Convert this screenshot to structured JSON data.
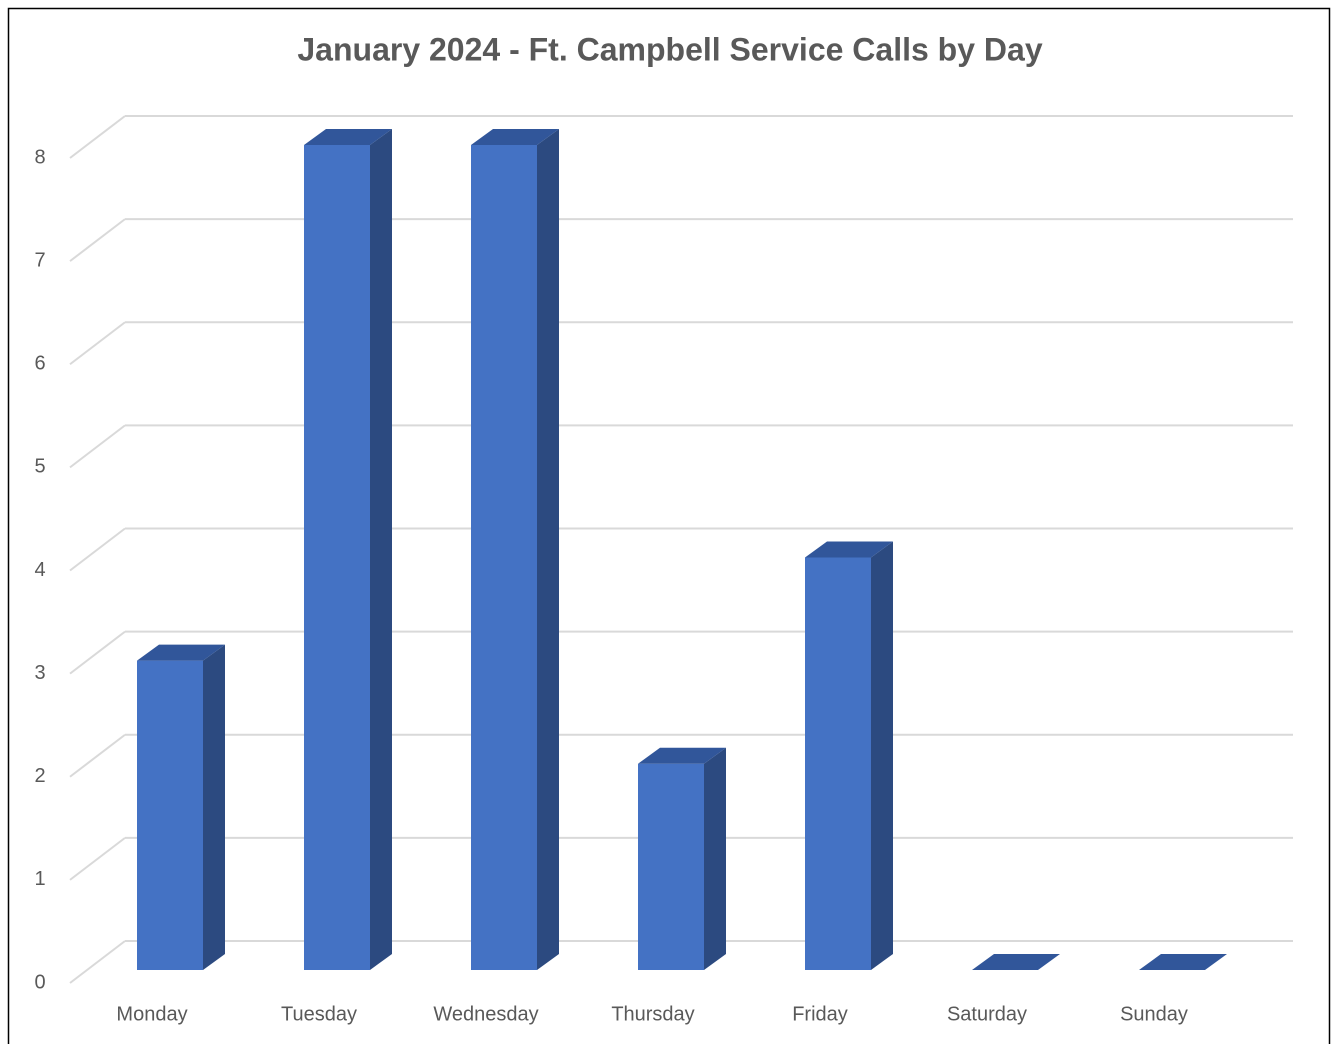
{
  "chart_data": {
    "type": "bar3d",
    "title": "January 2024 - Ft. Campbell Service Calls by Day",
    "categories": [
      "Monday",
      "Tuesday",
      "Wednesday",
      "Thursday",
      "Friday",
      "Saturday",
      "Sunday"
    ],
    "values": [
      3,
      8,
      8,
      2,
      4,
      0,
      0
    ],
    "color": "#4472c4",
    "ylim": [
      0,
      8
    ],
    "yticks": [
      0,
      1,
      2,
      3,
      4,
      5,
      6,
      7,
      8
    ],
    "grid": true
  }
}
